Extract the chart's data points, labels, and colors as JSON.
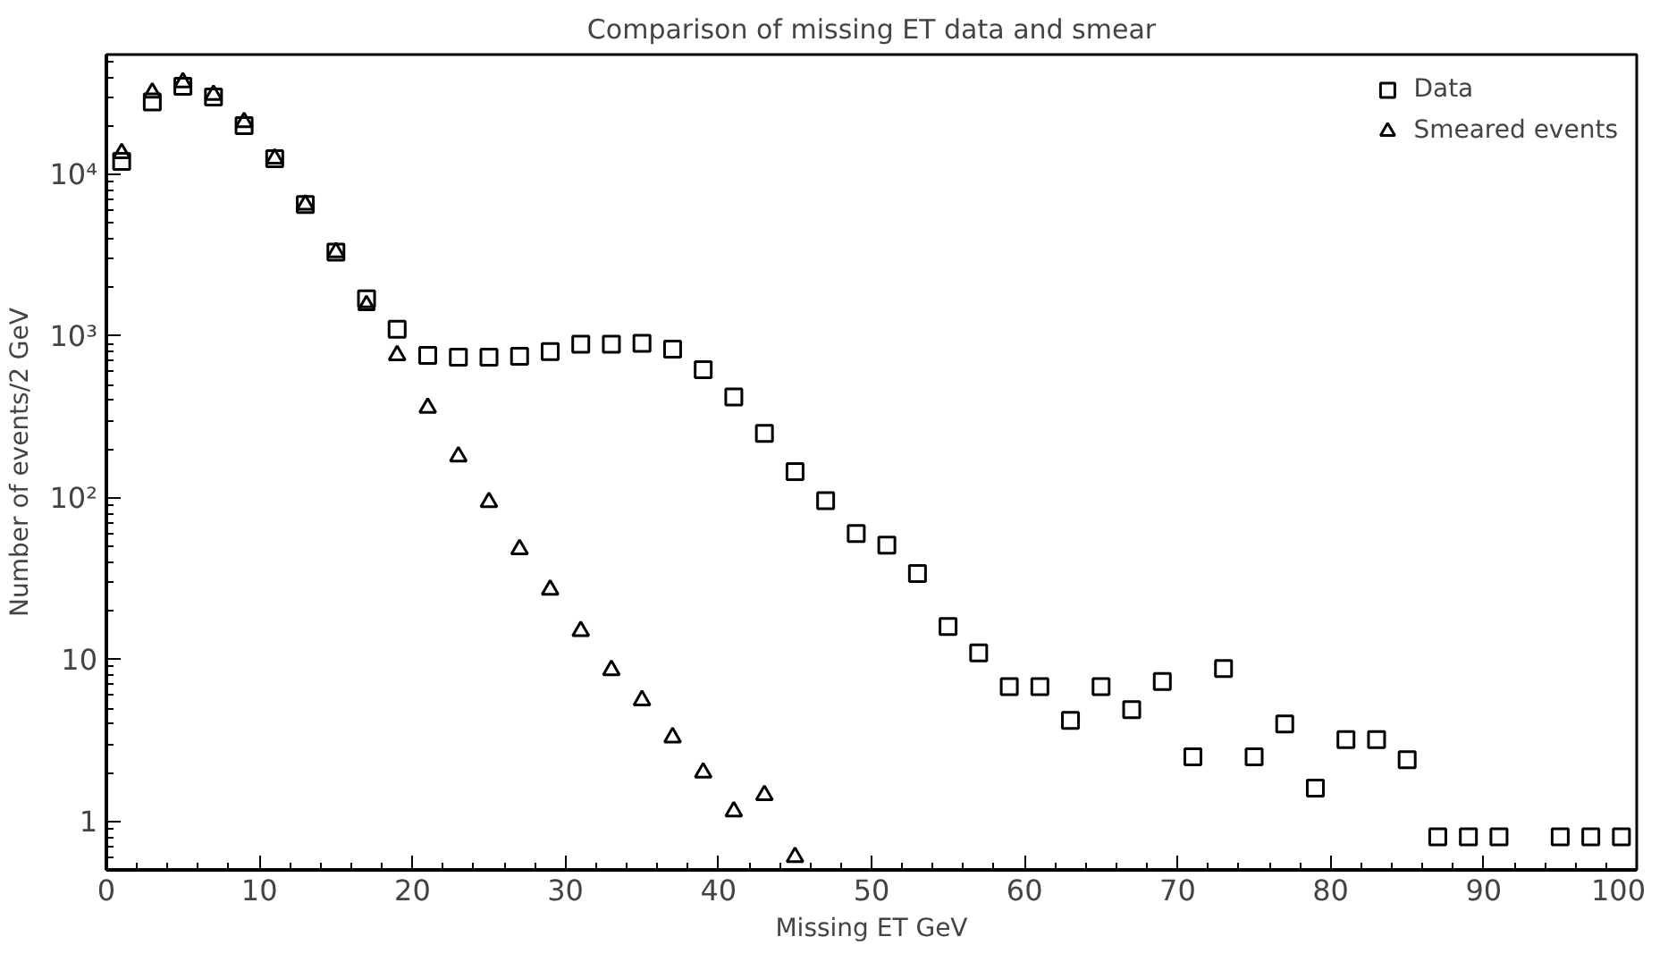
{
  "chart_data": {
    "type": "scatter",
    "title": "Comparison of missing ET data and smear",
    "xlabel": "Missing ET GeV",
    "ylabel": "Number of events/2 GeV",
    "log": "y",
    "xlim": [
      0,
      100
    ],
    "ylim": [
      0.5,
      55000
    ],
    "xticks": [
      0,
      10,
      20,
      30,
      40,
      50,
      60,
      70,
      80,
      90,
      100
    ],
    "yticks": [
      {
        "value": 1,
        "label": "1"
      },
      {
        "value": 10,
        "label": "10"
      },
      {
        "value": 100,
        "label": "10²"
      },
      {
        "value": 1000,
        "label": "10³"
      },
      {
        "value": 10000,
        "label": "10⁴"
      }
    ],
    "grid": false,
    "legend": "top right",
    "series": [
      {
        "name": "Data",
        "color": "#000000",
        "marker": "square",
        "x": [
          1,
          3,
          5,
          7,
          9,
          11,
          13,
          15,
          17,
          19,
          21,
          23,
          25,
          27,
          29,
          31,
          33,
          35,
          37,
          39,
          41,
          43,
          45,
          47,
          49,
          51,
          53,
          55,
          57,
          59,
          61,
          63,
          65,
          67,
          69,
          71,
          73,
          75,
          77,
          79,
          81,
          83,
          85,
          87,
          89,
          91,
          95,
          97,
          99
        ],
        "values": [
          12000,
          28000,
          35000,
          30000,
          20000,
          12500,
          6500,
          3300,
          1700,
          1100,
          760,
          740,
          740,
          750,
          800,
          890,
          890,
          900,
          830,
          620,
          420,
          250,
          145,
          96,
          60,
          51,
          34,
          16,
          11,
          6.8,
          6.8,
          4.2,
          6.8,
          4.9,
          7.3,
          2.5,
          8.8,
          2.5,
          4.0,
          1.6,
          3.2,
          3.2,
          2.4,
          0.8,
          0.8,
          0.8,
          0.8,
          0.8,
          0.8
        ]
      },
      {
        "name": "Smeared events",
        "color": "#000000",
        "marker": "triangle",
        "x": [
          1,
          3,
          5,
          7,
          9,
          11,
          13,
          15,
          17,
          19,
          21,
          23,
          25,
          27,
          29,
          31,
          33,
          35,
          37,
          39,
          41,
          43,
          45
        ],
        "values": [
          13500,
          32000,
          37000,
          31000,
          21000,
          12500,
          6500,
          3300,
          1550,
          760,
          360,
          180,
          94,
          48,
          27,
          15,
          8.6,
          5.6,
          3.3,
          2.0,
          1.15,
          1.45,
          0.6
        ]
      }
    ]
  }
}
